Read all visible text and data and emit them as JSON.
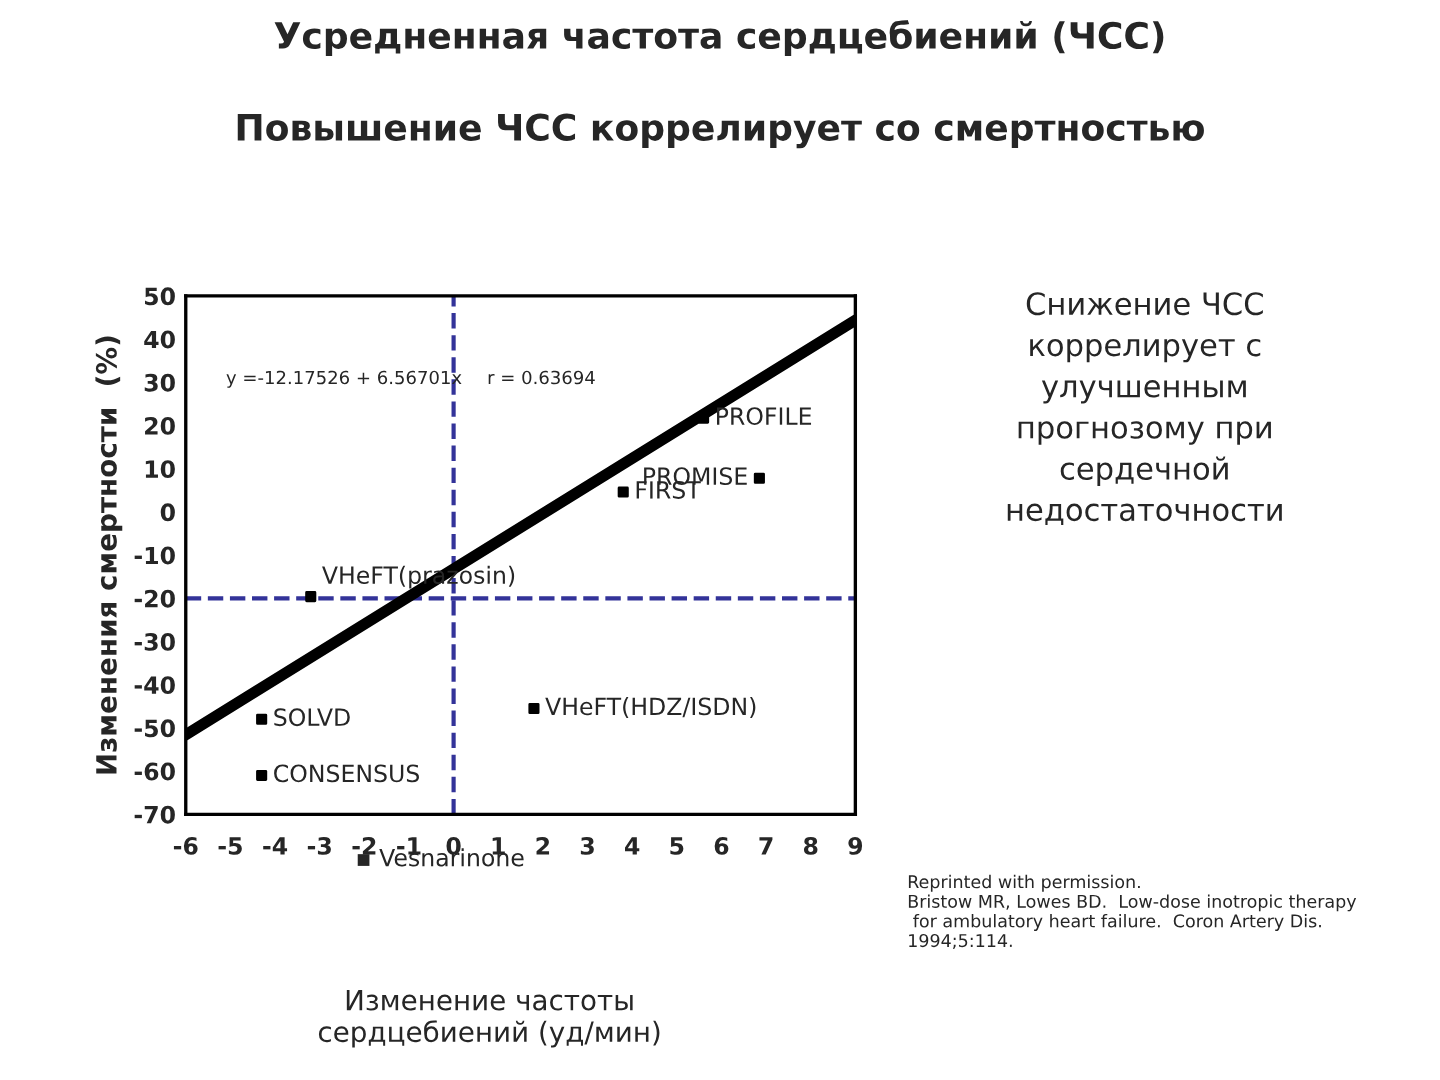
{
  "chart_data": {
    "type": "scatter",
    "title": "Усредненная частота сердцебиений (ЧСС)",
    "subtitle": "Повышение ЧСС коррелирует со смертностью",
    "xlabel": "Изменение частоты\nсердцебиений (уд/мин)",
    "ylabel": "Изменения смертности  (%)",
    "xlim": [
      -6,
      9
    ],
    "xticks": [
      -6,
      -5,
      -4,
      -3,
      -2,
      -1,
      0,
      1,
      2,
      3,
      4,
      5,
      6,
      7,
      8,
      9
    ],
    "ylim": [
      -70,
      50
    ],
    "yticks": [
      -70,
      -60,
      -50,
      -40,
      -30,
      -20,
      -10,
      0,
      10,
      20,
      30,
      40,
      50
    ],
    "grid": false,
    "marker": "square",
    "series": [
      {
        "name": "PROFILE",
        "color": "#000000",
        "x": [
          5.6
        ],
        "values": [
          21.7
        ]
      },
      {
        "name": "FIRST",
        "color": "#000000",
        "x": [
          3.8
        ],
        "values": [
          4.6
        ]
      },
      {
        "name": "PROMISE",
        "color": "#000000",
        "x": [
          6.85
        ],
        "values": [
          7.8
        ]
      },
      {
        "name": "VHeFT(prazosin)",
        "color": "#000000",
        "x": [
          -3.2
        ],
        "values": [
          -19.6
        ]
      },
      {
        "name": "SOLVD",
        "color": "#000000",
        "x": [
          -4.3
        ],
        "values": [
          -48
        ]
      },
      {
        "name": "CONSENSUS",
        "color": "#000000",
        "x": [
          -4.3
        ],
        "values": [
          -61
        ]
      },
      {
        "name": "VHeFT(HDZ/ISDN)",
        "color": "#000000",
        "x": [
          1.8
        ],
        "values": [
          -45.5
        ]
      },
      {
        "type": "line",
        "marker": "none",
        "color": "#000000",
        "x": [
          -6,
          9
        ],
        "values": [
          -51.6,
          44.4
        ]
      }
    ],
    "ref_lines": [
      {
        "axis": "y",
        "value": -20,
        "color": "#333399",
        "line_style": "dashed"
      },
      {
        "axis": "x",
        "value": 0,
        "color": "#333399",
        "line_style": "dashed"
      }
    ],
    "annotations": [
      "y =-12.17526 + 6.56701x",
      "r = 0.63694",
      "▪ Vesnarinone",
      "Снижение ЧСС\nкоррелирует с\nулучшенным\nпрогнозому при\nсердечной\nнедостаточности",
      "Reprinted with permission.\nBristow MR, Lowes BD.  Low-dose inotropic therapy\n for ambulatory heart failure.  Coron Artery Dis.\n1994;5:114."
    ]
  }
}
